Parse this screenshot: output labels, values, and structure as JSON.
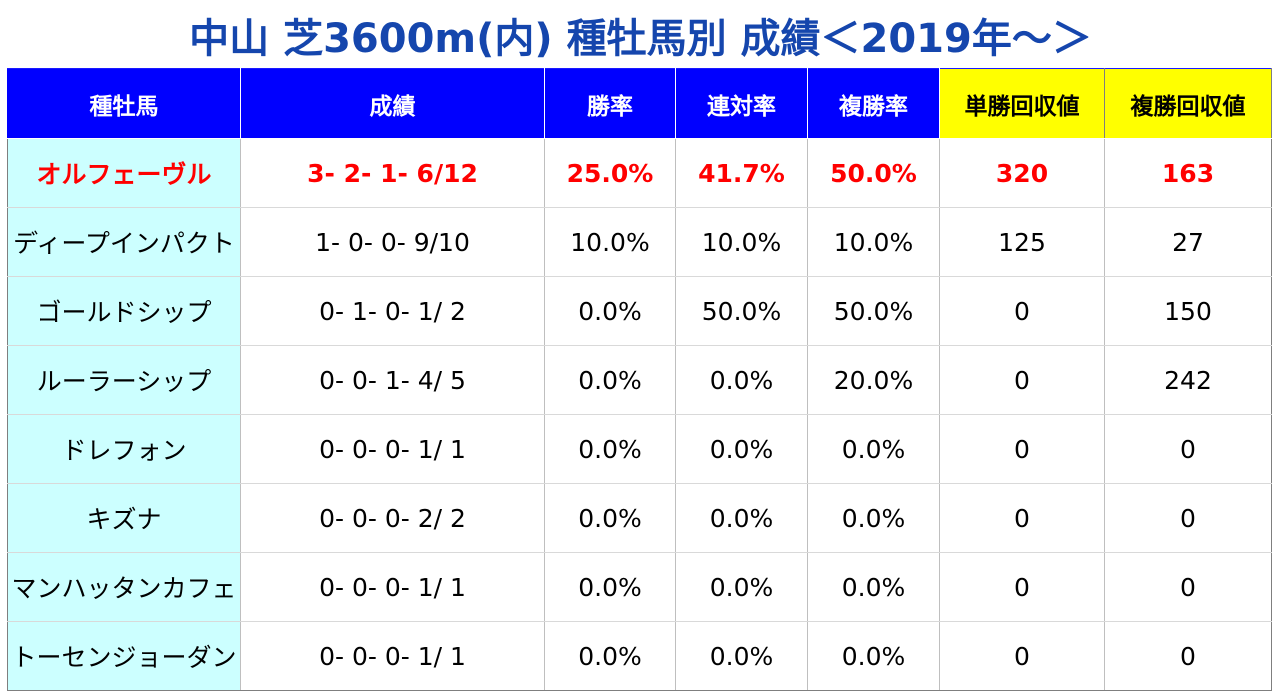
{
  "title": "中山 芝3600m(内) 種牡馬別 成績＜2019年～＞",
  "columns": [
    "種牡馬",
    "成績",
    "勝率",
    "連対率",
    "複勝率",
    "単勝回収値",
    "複勝回収値"
  ],
  "colors": {
    "title": "#1546ad",
    "header_blue": "#0000ff",
    "header_yellow": "#ffff00",
    "horse_cell": "#ccffff",
    "highlight_text": "#ff0000"
  },
  "rows": [
    {
      "sire": "オルフェーヴル",
      "record": "3- 2- 1- 6/12",
      "win_rate": "25.0%",
      "quinella_rate": "41.7%",
      "place_rate": "50.0%",
      "win_return": "320",
      "place_return": "163",
      "highlight": true
    },
    {
      "sire": "ディープインパクト",
      "record": "1- 0- 0- 9/10",
      "win_rate": "10.0%",
      "quinella_rate": "10.0%",
      "place_rate": "10.0%",
      "win_return": "125",
      "place_return": "27",
      "highlight": false
    },
    {
      "sire": "ゴールドシップ",
      "record": "0- 1- 0- 1/ 2",
      "win_rate": "0.0%",
      "quinella_rate": "50.0%",
      "place_rate": "50.0%",
      "win_return": "0",
      "place_return": "150",
      "highlight": false
    },
    {
      "sire": "ルーラーシップ",
      "record": "0- 0- 1- 4/ 5",
      "win_rate": "0.0%",
      "quinella_rate": "0.0%",
      "place_rate": "20.0%",
      "win_return": "0",
      "place_return": "242",
      "highlight": false
    },
    {
      "sire": "ドレフォン",
      "record": "0- 0- 0- 1/ 1",
      "win_rate": "0.0%",
      "quinella_rate": "0.0%",
      "place_rate": "0.0%",
      "win_return": "0",
      "place_return": "0",
      "highlight": false
    },
    {
      "sire": "キズナ",
      "record": "0- 0- 0- 2/ 2",
      "win_rate": "0.0%",
      "quinella_rate": "0.0%",
      "place_rate": "0.0%",
      "win_return": "0",
      "place_return": "0",
      "highlight": false
    },
    {
      "sire": "マンハッタンカフェ",
      "record": "0- 0- 0- 1/ 1",
      "win_rate": "0.0%",
      "quinella_rate": "0.0%",
      "place_rate": "0.0%",
      "win_return": "0",
      "place_return": "0",
      "highlight": false
    },
    {
      "sire": "トーセンジョーダン",
      "record": "0- 0- 0- 1/ 1",
      "win_rate": "0.0%",
      "quinella_rate": "0.0%",
      "place_rate": "0.0%",
      "win_return": "0",
      "place_return": "0",
      "highlight": false
    }
  ]
}
